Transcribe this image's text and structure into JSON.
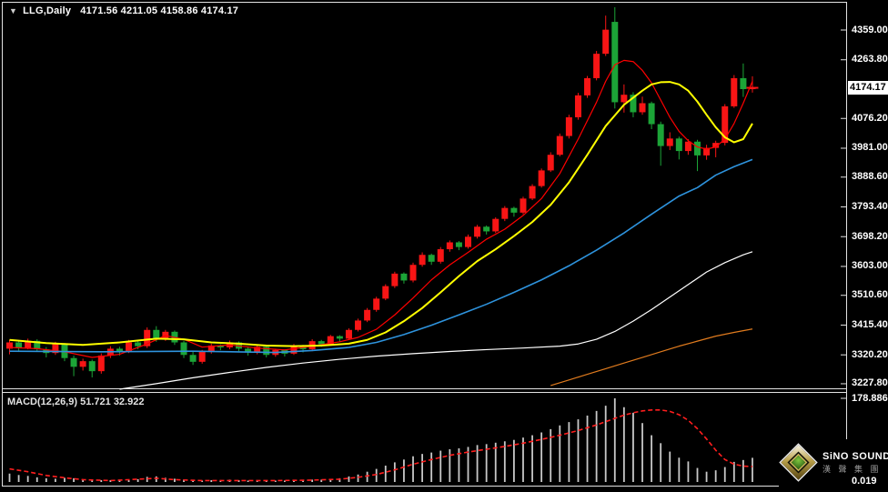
{
  "header": {
    "collapse_icon": "▼",
    "symbol": "LLG,Daily",
    "ohlc": "4171.56 4211.05 4158.86 4174.17"
  },
  "price_axis": {
    "labels": [
      "4359.00",
      "4263.80",
      "4076.20",
      "3981.00",
      "3888.60",
      "3793.40",
      "3698.20",
      "3603.00",
      "3510.60",
      "3415.40",
      "3320.20",
      "3227.80"
    ],
    "current": "4174.17"
  },
  "macd_panel": {
    "name_label": "MACD(12,26,9)",
    "macd_value": "51.721",
    "signal_value": "32.922",
    "axis_top": "178.886",
    "axis_bottom": "0.019"
  },
  "logo": {
    "line1": "SiNO SOUND",
    "line2": "漢 聲 集 團"
  },
  "colors": {
    "up": "#f81515",
    "down": "#1ca437",
    "ma_red": "#ff0000",
    "ma_yellow": "#ffff00",
    "ma_blue": "#2e93dd",
    "ma_white": "#ffffff",
    "ma_orange": "#e07b1e",
    "macd_bar": "#c8c8c8",
    "macd_signal": "#ff1e1e",
    "frame": "#e2e2e2",
    "text": "#ffffff",
    "tag_bg": "#ffffff",
    "tag_text": "#000000"
  },
  "chart_data": {
    "type": "candlestick",
    "title": "LLG,Daily",
    "timeframe": "Daily",
    "legend_position": "none",
    "grid": false,
    "price_ylim": [
      3210,
      4430
    ],
    "price_gridlines": [
      4359.0,
      4263.8,
      4076.2,
      3981.0,
      3888.6,
      3793.4,
      3698.2,
      3603.0,
      3510.6,
      3415.4,
      3320.2,
      3227.8
    ],
    "current_price": 4174.17,
    "candles": [
      [
        3340,
        3368,
        3322,
        3360
      ],
      [
        3360,
        3366,
        3332,
        3342
      ],
      [
        3342,
        3372,
        3338,
        3365
      ],
      [
        3365,
        3370,
        3330,
        3338
      ],
      [
        3338,
        3345,
        3312,
        3326
      ],
      [
        3326,
        3362,
        3320,
        3355
      ],
      [
        3355,
        3358,
        3300,
        3310
      ],
      [
        3310,
        3318,
        3252,
        3282
      ],
      [
        3282,
        3308,
        3270,
        3300
      ],
      [
        3300,
        3305,
        3248,
        3268
      ],
      [
        3268,
        3325,
        3260,
        3318
      ],
      [
        3318,
        3348,
        3310,
        3340
      ],
      [
        3340,
        3346,
        3318,
        3332
      ],
      [
        3332,
        3368,
        3326,
        3360
      ],
      [
        3360,
        3365,
        3338,
        3348
      ],
      [
        3348,
        3408,
        3342,
        3400
      ],
      [
        3400,
        3412,
        3362,
        3372
      ],
      [
        3372,
        3400,
        3365,
        3394
      ],
      [
        3394,
        3398,
        3352,
        3360
      ],
      [
        3360,
        3365,
        3310,
        3320
      ],
      [
        3320,
        3330,
        3288,
        3298
      ],
      [
        3298,
        3336,
        3292,
        3330
      ],
      [
        3330,
        3356,
        3324,
        3350
      ],
      [
        3350,
        3354,
        3335,
        3344
      ],
      [
        3344,
        3366,
        3338,
        3360
      ],
      [
        3360,
        3363,
        3332,
        3340
      ],
      [
        3340,
        3345,
        3318,
        3328
      ],
      [
        3328,
        3350,
        3322,
        3346
      ],
      [
        3346,
        3349,
        3312,
        3320
      ],
      [
        3320,
        3340,
        3314,
        3336
      ],
      [
        3336,
        3338,
        3315,
        3324
      ],
      [
        3324,
        3355,
        3320,
        3350
      ],
      [
        3350,
        3352,
        3328,
        3338
      ],
      [
        3338,
        3370,
        3332,
        3364
      ],
      [
        3364,
        3368,
        3346,
        3354
      ],
      [
        3354,
        3384,
        3350,
        3380
      ],
      [
        3380,
        3383,
        3362,
        3372
      ],
      [
        3372,
        3405,
        3368,
        3400
      ],
      [
        3400,
        3436,
        3395,
        3430
      ],
      [
        3430,
        3470,
        3425,
        3464
      ],
      [
        3464,
        3506,
        3458,
        3500
      ],
      [
        3500,
        3546,
        3495,
        3540
      ],
      [
        3540,
        3586,
        3534,
        3580
      ],
      [
        3580,
        3584,
        3548,
        3558
      ],
      [
        3558,
        3615,
        3552,
        3608
      ],
      [
        3608,
        3648,
        3602,
        3640
      ],
      [
        3640,
        3644,
        3608,
        3618
      ],
      [
        3618,
        3665,
        3612,
        3658
      ],
      [
        3658,
        3686,
        3650,
        3680
      ],
      [
        3680,
        3684,
        3655,
        3665
      ],
      [
        3665,
        3705,
        3660,
        3698
      ],
      [
        3698,
        3736,
        3692,
        3730
      ],
      [
        3730,
        3734,
        3705,
        3715
      ],
      [
        3715,
        3760,
        3710,
        3755
      ],
      [
        3755,
        3796,
        3748,
        3790
      ],
      [
        3790,
        3794,
        3762,
        3775
      ],
      [
        3775,
        3826,
        3770,
        3820
      ],
      [
        3820,
        3866,
        3815,
        3860
      ],
      [
        3860,
        3916,
        3855,
        3910
      ],
      [
        3910,
        3968,
        3905,
        3960
      ],
      [
        3960,
        4028,
        3955,
        4020
      ],
      [
        4020,
        4088,
        4012,
        4080
      ],
      [
        4080,
        4158,
        4072,
        4150
      ],
      [
        4150,
        4212,
        4142,
        4205
      ],
      [
        4205,
        4292,
        4198,
        4283
      ],
      [
        4283,
        4405,
        4276,
        4360
      ],
      [
        4385,
        4432,
        4108,
        4128
      ],
      [
        4128,
        4185,
        4095,
        4152
      ],
      [
        4152,
        4160,
        4080,
        4096
      ],
      [
        4096,
        4146,
        4088,
        4125
      ],
      [
        4125,
        4130,
        4042,
        4058
      ],
      [
        4058,
        4066,
        3925,
        3988
      ],
      [
        3988,
        4032,
        3975,
        4012
      ],
      [
        4012,
        4018,
        3945,
        3972
      ],
      [
        3972,
        4010,
        3960,
        4002
      ],
      [
        4002,
        4008,
        3908,
        3958
      ],
      [
        3958,
        3992,
        3944,
        3982
      ],
      [
        3982,
        4005,
        3952,
        3998
      ],
      [
        3998,
        4122,
        3990,
        4115
      ],
      [
        4115,
        4215,
        4110,
        4205
      ],
      [
        4205,
        4252,
        4145,
        4170
      ],
      [
        4171.56,
        4211.05,
        4158.86,
        4174.17
      ]
    ],
    "ma_lines": [
      {
        "name": "ma-fast-red",
        "color": "#ff0000",
        "width": 1.2,
        "points": [
          [
            0,
            3344
          ],
          [
            3,
            3340
          ],
          [
            6,
            3330
          ],
          [
            9,
            3312
          ],
          [
            12,
            3322
          ],
          [
            15,
            3355
          ],
          [
            17,
            3382
          ],
          [
            19,
            3370
          ],
          [
            21,
            3345
          ],
          [
            24,
            3352
          ],
          [
            27,
            3342
          ],
          [
            30,
            3336
          ],
          [
            33,
            3348
          ],
          [
            36,
            3362
          ],
          [
            38,
            3376
          ],
          [
            40,
            3402
          ],
          [
            42,
            3448
          ],
          [
            44,
            3502
          ],
          [
            46,
            3560
          ],
          [
            48,
            3608
          ],
          [
            50,
            3648
          ],
          [
            52,
            3690
          ],
          [
            54,
            3722
          ],
          [
            56,
            3766
          ],
          [
            58,
            3820
          ],
          [
            60,
            3900
          ],
          [
            62,
            4010
          ],
          [
            64,
            4128
          ],
          [
            65,
            4195
          ],
          [
            66,
            4248
          ],
          [
            67,
            4262
          ],
          [
            68,
            4258
          ],
          [
            69,
            4230
          ],
          [
            70,
            4190
          ],
          [
            71,
            4135
          ],
          [
            72,
            4080
          ],
          [
            73,
            4035
          ],
          [
            74,
            4005
          ],
          [
            75,
            3985
          ],
          [
            76,
            3978
          ],
          [
            77,
            3985
          ],
          [
            78,
            4010
          ],
          [
            79,
            4060
          ],
          [
            80,
            4125
          ],
          [
            81,
            4195
          ]
        ]
      },
      {
        "name": "ma-yellow",
        "color": "#ffff00",
        "width": 2,
        "points": [
          [
            0,
            3368
          ],
          [
            4,
            3358
          ],
          [
            8,
            3352
          ],
          [
            12,
            3360
          ],
          [
            16,
            3372
          ],
          [
            19,
            3370
          ],
          [
            22,
            3360
          ],
          [
            25,
            3356
          ],
          [
            28,
            3350
          ],
          [
            31,
            3348
          ],
          [
            34,
            3350
          ],
          [
            37,
            3356
          ],
          [
            39,
            3368
          ],
          [
            41,
            3392
          ],
          [
            43,
            3428
          ],
          [
            45,
            3470
          ],
          [
            47,
            3520
          ],
          [
            49,
            3572
          ],
          [
            51,
            3620
          ],
          [
            53,
            3658
          ],
          [
            55,
            3700
          ],
          [
            57,
            3745
          ],
          [
            59,
            3800
          ],
          [
            61,
            3872
          ],
          [
            63,
            3960
          ],
          [
            65,
            4052
          ],
          [
            67,
            4120
          ],
          [
            69,
            4165
          ],
          [
            70,
            4185
          ],
          [
            71,
            4192
          ],
          [
            72,
            4193
          ],
          [
            73,
            4185
          ],
          [
            74,
            4165
          ],
          [
            75,
            4130
          ],
          [
            76,
            4088
          ],
          [
            77,
            4048
          ],
          [
            78,
            4016
          ],
          [
            79,
            4000
          ],
          [
            80,
            4010
          ],
          [
            81,
            4060
          ]
        ]
      },
      {
        "name": "ma-blue",
        "color": "#2e93dd",
        "width": 1.6,
        "points": [
          [
            0,
            3332
          ],
          [
            10,
            3330
          ],
          [
            20,
            3332
          ],
          [
            29,
            3328
          ],
          [
            33,
            3334
          ],
          [
            37,
            3344
          ],
          [
            40,
            3360
          ],
          [
            43,
            3385
          ],
          [
            46,
            3415
          ],
          [
            49,
            3448
          ],
          [
            52,
            3482
          ],
          [
            55,
            3520
          ],
          [
            58,
            3560
          ],
          [
            61,
            3605
          ],
          [
            64,
            3655
          ],
          [
            67,
            3710
          ],
          [
            70,
            3770
          ],
          [
            73,
            3828
          ],
          [
            75,
            3855
          ],
          [
            77,
            3895
          ],
          [
            79,
            3922
          ],
          [
            81,
            3945
          ]
        ]
      },
      {
        "name": "ma-white",
        "color": "#ffffff",
        "width": 1.2,
        "points": [
          [
            12,
            3208
          ],
          [
            16,
            3228
          ],
          [
            20,
            3247
          ],
          [
            24,
            3264
          ],
          [
            28,
            3280
          ],
          [
            32,
            3294
          ],
          [
            36,
            3306
          ],
          [
            40,
            3316
          ],
          [
            44,
            3324
          ],
          [
            48,
            3331
          ],
          [
            52,
            3337
          ],
          [
            56,
            3342
          ],
          [
            60,
            3348
          ],
          [
            62,
            3355
          ],
          [
            64,
            3370
          ],
          [
            66,
            3395
          ],
          [
            68,
            3428
          ],
          [
            70,
            3465
          ],
          [
            72,
            3505
          ],
          [
            74,
            3545
          ],
          [
            76,
            3585
          ],
          [
            78,
            3615
          ],
          [
            80,
            3640
          ],
          [
            81,
            3650
          ]
        ]
      },
      {
        "name": "ma-orange",
        "color": "#e07b1e",
        "width": 1.2,
        "points": [
          [
            59,
            3222
          ],
          [
            61,
            3240
          ],
          [
            63,
            3258
          ],
          [
            65,
            3276
          ],
          [
            67,
            3294
          ],
          [
            69,
            3312
          ],
          [
            71,
            3330
          ],
          [
            73,
            3348
          ],
          [
            75,
            3364
          ],
          [
            77,
            3380
          ],
          [
            79,
            3392
          ],
          [
            81,
            3403
          ]
        ]
      }
    ],
    "macd": {
      "type": "bar+line",
      "params": [
        12,
        26,
        9
      ],
      "current_macd": 51.721,
      "current_signal": 32.922,
      "axis_labels": [
        178.886,
        0.019
      ],
      "histogram": [
        18,
        15,
        13,
        10,
        8,
        7,
        9,
        8,
        6,
        5,
        4,
        4,
        5,
        4,
        6,
        11,
        12,
        9,
        7,
        5,
        4,
        3,
        4,
        4,
        5,
        4,
        3,
        3,
        3,
        3,
        3,
        4,
        4,
        5,
        5,
        6,
        8,
        12,
        16,
        22,
        28,
        35,
        42,
        48,
        55,
        60,
        63,
        67,
        70,
        72,
        75,
        79,
        81,
        84,
        87,
        90,
        95,
        100,
        106,
        113,
        121,
        128,
        134,
        142,
        152,
        163,
        179,
        160,
        148,
        126,
        100,
        83,
        65,
        52,
        44,
        30,
        22,
        25,
        32,
        43,
        47,
        51.721
      ],
      "signal_points": [
        [
          0,
          28
        ],
        [
          2,
          22
        ],
        [
          4,
          14
        ],
        [
          6,
          9
        ],
        [
          8,
          5
        ],
        [
          11,
          3
        ],
        [
          14,
          6
        ],
        [
          16,
          8
        ],
        [
          18,
          5
        ],
        [
          21,
          3
        ],
        [
          25,
          3
        ],
        [
          29,
          3
        ],
        [
          33,
          4
        ],
        [
          36,
          6
        ],
        [
          38,
          10
        ],
        [
          40,
          16
        ],
        [
          42,
          26
        ],
        [
          44,
          38
        ],
        [
          46,
          48
        ],
        [
          48,
          57
        ],
        [
          50,
          64
        ],
        [
          52,
          70
        ],
        [
          54,
          76
        ],
        [
          56,
          83
        ],
        [
          58,
          91
        ],
        [
          60,
          100
        ],
        [
          62,
          110
        ],
        [
          64,
          122
        ],
        [
          66,
          136
        ],
        [
          67,
          143
        ],
        [
          68,
          148
        ],
        [
          69,
          152
        ],
        [
          70,
          154
        ],
        [
          71,
          154
        ],
        [
          72,
          151
        ],
        [
          73,
          144
        ],
        [
          74,
          132
        ],
        [
          75,
          114
        ],
        [
          76,
          92
        ],
        [
          77,
          68
        ],
        [
          78,
          48
        ],
        [
          79,
          38
        ],
        [
          80,
          34
        ],
        [
          81,
          32.922
        ]
      ]
    }
  }
}
